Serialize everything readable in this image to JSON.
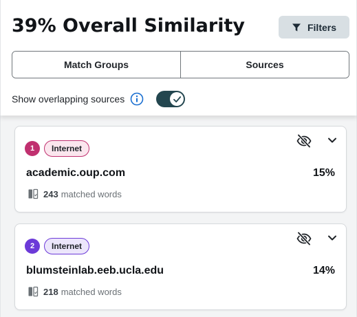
{
  "header": {
    "title": "39% Overall Similarity",
    "filters_label": "Filters"
  },
  "tabs": [
    {
      "label": "Match Groups"
    },
    {
      "label": "Sources"
    }
  ],
  "overlap": {
    "label": "Show overlapping sources",
    "toggle_on": true
  },
  "sources": [
    {
      "number": "1",
      "type": "Internet",
      "domain": "academic.oup.com",
      "percent": "15%",
      "matched_count": "243",
      "matched_label": "matched words",
      "color": "#c0306f",
      "tag_bg": "#fbe6ee",
      "tag_border": "#c0306f"
    },
    {
      "number": "2",
      "type": "Internet",
      "domain": "blumsteinlab.eeb.ucla.edu",
      "percent": "14%",
      "matched_count": "218",
      "matched_label": "matched words",
      "color": "#6c3ad8",
      "tag_bg": "#ece6fb",
      "tag_border": "#6c3ad8"
    }
  ],
  "icons": [
    "filter-icon",
    "info-icon",
    "check-icon",
    "eye-slash-icon",
    "chevron-down-icon",
    "matched-words-icon"
  ]
}
